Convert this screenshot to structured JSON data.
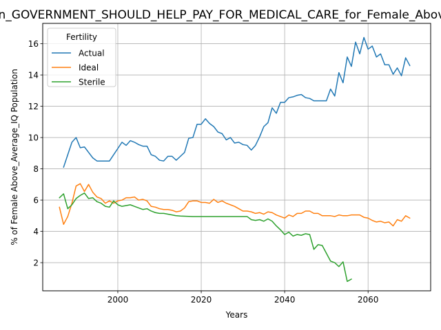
{
  "chart_data": {
    "type": "line",
    "title": "_in_GOVERNMENT_SHOULD_HELP_PAY_FOR_MEDICAL_CARE_for_Female_Above",
    "xlabel": "Years",
    "ylabel": "% of Female Above_Average_IQ Population",
    "xlim": [
      1982,
      2075
    ],
    "ylim": [
      0.2,
      17.3
    ],
    "xticks": [
      2000,
      2020,
      2040,
      2060
    ],
    "yticks": [
      2,
      4,
      6,
      8,
      10,
      12,
      14,
      16
    ],
    "grid": true,
    "legend": {
      "title": "Fertility",
      "placement": "top-left"
    },
    "x": [
      1986,
      1987,
      1988,
      1989,
      1990,
      1991,
      1992,
      1993,
      1994,
      1995,
      1996,
      1997,
      1998,
      1999,
      2000,
      2001,
      2002,
      2003,
      2004,
      2005,
      2006,
      2007,
      2008,
      2009,
      2010,
      2011,
      2012,
      2013,
      2014,
      2015,
      2016,
      2017,
      2018,
      2019,
      2020,
      2021,
      2022,
      2023,
      2024,
      2025,
      2026,
      2027,
      2028,
      2029,
      2030,
      2031,
      2032,
      2033,
      2034,
      2035,
      2036,
      2037,
      2038,
      2039,
      2040,
      2041,
      2042,
      2043,
      2044,
      2045,
      2046,
      2047,
      2048,
      2049,
      2050,
      2051,
      2052,
      2053,
      2054,
      2055,
      2056,
      2057,
      2058,
      2059,
      2060,
      2061,
      2062,
      2063,
      2064,
      2065,
      2066,
      2067,
      2068,
      2069,
      2070
    ],
    "series": [
      {
        "name": "Actual",
        "color": "#1f77b4",
        "values": [
          null,
          8.1,
          8.9,
          9.7,
          10.0,
          9.35,
          9.4,
          9.05,
          8.7,
          8.5,
          8.5,
          8.5,
          8.5,
          8.9,
          9.3,
          9.7,
          9.5,
          9.8,
          9.7,
          9.55,
          9.45,
          9.45,
          8.9,
          8.8,
          8.55,
          8.5,
          8.8,
          8.8,
          8.55,
          8.8,
          9.05,
          9.95,
          10.0,
          10.85,
          10.85,
          11.2,
          10.9,
          10.7,
          10.35,
          10.25,
          9.85,
          10.0,
          9.65,
          9.7,
          9.55,
          9.5,
          9.2,
          9.5,
          10.05,
          10.7,
          10.95,
          11.9,
          11.55,
          12.25,
          12.25,
          12.55,
          12.6,
          12.7,
          12.75,
          12.55,
          12.5,
          12.35,
          12.35,
          12.35,
          12.35,
          13.1,
          12.65,
          14.15,
          13.5,
          15.15,
          14.55,
          16.1,
          15.35,
          16.4,
          15.65,
          15.85,
          15.15,
          15.35,
          14.65,
          14.65,
          14.05,
          14.45,
          13.95,
          15.1,
          14.6
        ]
      },
      {
        "name": "Ideal",
        "color": "#ff7f0e",
        "values": [
          5.55,
          4.45,
          4.95,
          5.8,
          6.9,
          7.05,
          6.55,
          7.0,
          6.5,
          6.2,
          6.1,
          5.8,
          5.95,
          5.8,
          5.95,
          6.0,
          6.15,
          6.15,
          6.2,
          6.0,
          6.05,
          5.95,
          5.6,
          5.55,
          5.45,
          5.4,
          5.4,
          5.35,
          5.25,
          5.3,
          5.5,
          5.9,
          5.95,
          5.95,
          5.85,
          5.85,
          5.8,
          6.05,
          5.85,
          5.95,
          5.8,
          5.7,
          5.6,
          5.45,
          5.3,
          5.3,
          5.25,
          5.15,
          5.2,
          5.1,
          5.25,
          5.2,
          5.05,
          4.95,
          4.85,
          5.05,
          4.95,
          5.15,
          5.15,
          5.3,
          5.3,
          5.15,
          5.15,
          5.0,
          5.0,
          5.0,
          4.95,
          5.05,
          5.0,
          5.0,
          5.05,
          5.05,
          5.05,
          4.9,
          4.85,
          4.7,
          4.6,
          4.65,
          4.55,
          4.6,
          4.35,
          4.75,
          4.65,
          5.0,
          4.85
        ]
      },
      {
        "name": "Sterile",
        "color": "#2ca02c",
        "values": [
          6.15,
          6.4,
          5.45,
          5.7,
          6.1,
          6.3,
          6.45,
          6.1,
          6.15,
          5.9,
          5.8,
          5.6,
          5.55,
          5.95,
          5.7,
          5.6,
          5.65,
          5.7,
          5.6,
          5.5,
          5.4,
          5.45,
          5.3,
          5.2,
          5.15,
          5.15,
          5.1,
          5.05,
          5.0,
          4.98,
          4.97,
          4.96,
          4.95,
          4.95,
          4.95,
          4.95,
          4.95,
          4.95,
          4.95,
          4.95,
          4.95,
          4.95,
          4.95,
          4.95,
          4.95,
          4.95,
          4.75,
          4.7,
          4.75,
          4.65,
          4.8,
          4.65,
          4.35,
          4.1,
          3.8,
          3.95,
          3.7,
          3.8,
          3.75,
          3.85,
          3.8,
          2.85,
          3.15,
          3.1,
          2.6,
          2.1,
          2.0,
          1.75,
          2.05,
          0.8,
          0.95,
          null,
          null,
          null,
          null,
          null,
          null,
          null,
          null,
          null,
          null,
          null,
          null,
          null,
          null
        ]
      }
    ]
  }
}
